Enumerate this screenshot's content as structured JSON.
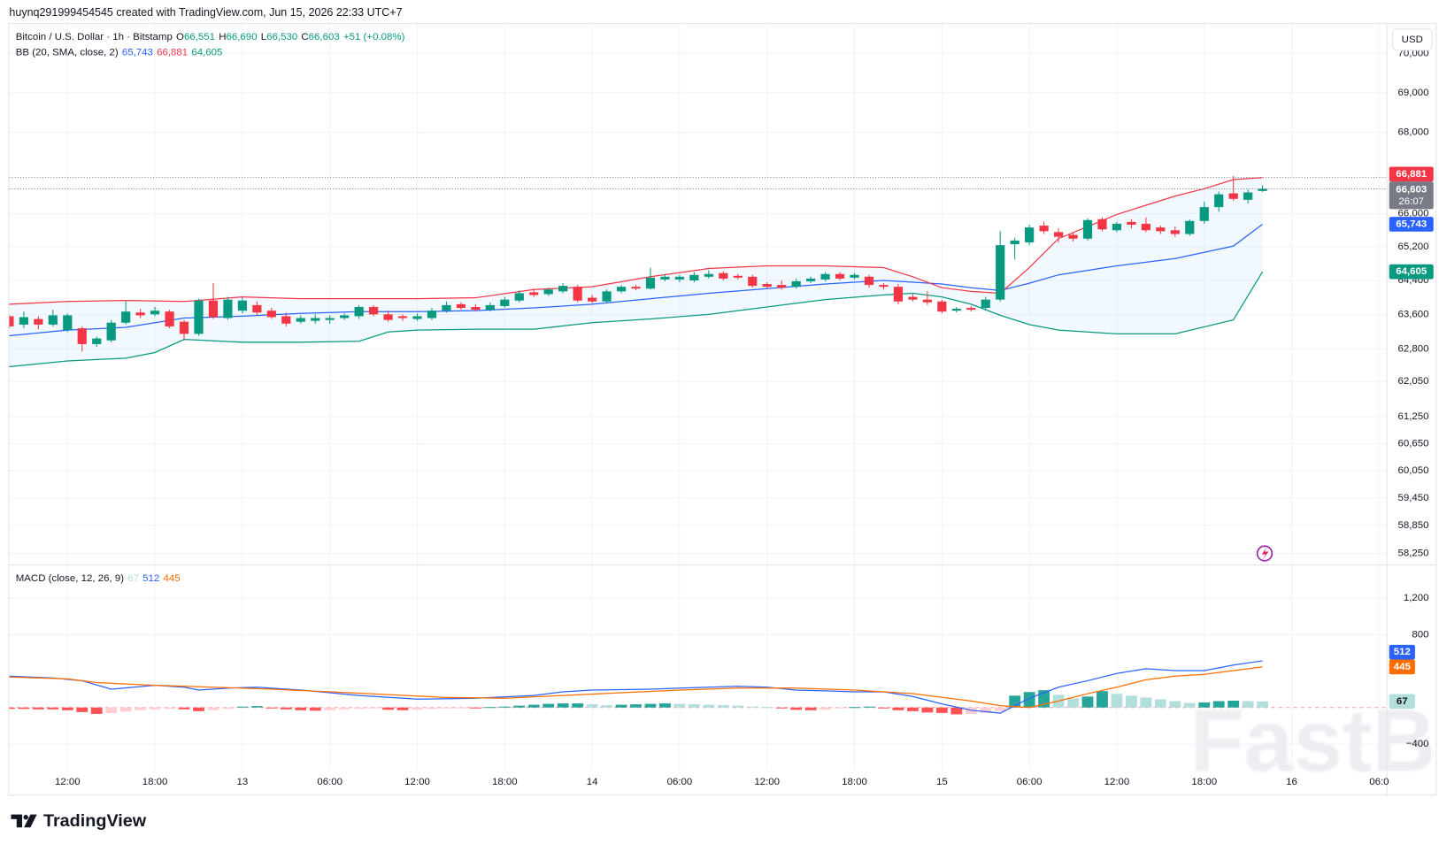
{
  "header": {
    "credit": "huynq291999454545 created with TradingView.com, Jun 15, 2026 22:33 UTC+7"
  },
  "footer": {
    "brand": "TradingView"
  },
  "watermark": "FastBull",
  "chart_data": [
    {
      "type": "candlestick",
      "title": "Bitcoin / U.S. Dollar · 1h · Bitstamp",
      "currency": "USD",
      "countdown": "26:07",
      "legend_ohlc": [
        {
          "key": "O",
          "value": "66,551"
        },
        {
          "key": "H",
          "value": "66,690"
        },
        {
          "key": "L",
          "value": "66,530"
        },
        {
          "key": "C",
          "value": "66,603"
        }
      ],
      "change": "+51 (+0.08%)",
      "colors": {
        "up": "#089981",
        "down": "#f23645"
      },
      "ohlc": [
        [
          63557,
          63600,
          63276,
          63319
        ],
        [
          63362,
          63665,
          63276,
          63535
        ],
        [
          63492,
          63557,
          63254,
          63362
        ],
        [
          63362,
          63708,
          63319,
          63578
        ],
        [
          63233,
          63622,
          63190,
          63578
        ],
        [
          63276,
          63319,
          62736,
          62909
        ],
        [
          62909,
          63082,
          62844,
          63038
        ],
        [
          62995,
          63470,
          62952,
          63406
        ],
        [
          63406,
          63902,
          63362,
          63665
        ],
        [
          63643,
          63730,
          63514,
          63578
        ],
        [
          63600,
          63773,
          63557,
          63686
        ],
        [
          63665,
          63708,
          63276,
          63319
        ],
        [
          63427,
          63470,
          62995,
          63146
        ],
        [
          63146,
          63967,
          63103,
          63924
        ],
        [
          63924,
          64334,
          63492,
          63535
        ],
        [
          63514,
          64010,
          63470,
          63946
        ],
        [
          63686,
          63989,
          63622,
          63924
        ],
        [
          63816,
          63902,
          63578,
          63643
        ],
        [
          63686,
          63751,
          63492,
          63535
        ],
        [
          63557,
          63643,
          63319,
          63384
        ],
        [
          63427,
          63578,
          63384,
          63514
        ],
        [
          63449,
          63600,
          63384,
          63514
        ],
        [
          63470,
          63578,
          63384,
          63514
        ],
        [
          63514,
          63622,
          63470,
          63578
        ],
        [
          63557,
          63816,
          63492,
          63773
        ],
        [
          63773,
          63816,
          63557,
          63600
        ],
        [
          63600,
          63686,
          63427,
          63470
        ],
        [
          63557,
          63600,
          63449,
          63514
        ],
        [
          63492,
          63622,
          63449,
          63557
        ],
        [
          63514,
          63751,
          63470,
          63686
        ],
        [
          63686,
          63902,
          63643,
          63816
        ],
        [
          63838,
          63881,
          63708,
          63751
        ],
        [
          63773,
          63838,
          63665,
          63708
        ],
        [
          63708,
          63881,
          63665,
          63816
        ],
        [
          63794,
          64010,
          63751,
          63946
        ],
        [
          63924,
          64162,
          63881,
          64097
        ],
        [
          64118,
          64205,
          64010,
          64054
        ],
        [
          64075,
          64226,
          64032,
          64183
        ],
        [
          64140,
          64334,
          64097,
          64270
        ],
        [
          64248,
          64291,
          63881,
          63924
        ],
        [
          63989,
          64054,
          63859,
          63902
        ],
        [
          63902,
          64183,
          63859,
          64140
        ],
        [
          64140,
          64291,
          64097,
          64248
        ],
        [
          64248,
          64291,
          64162,
          64205
        ],
        [
          64205,
          64702,
          64183,
          64464
        ],
        [
          64421,
          64550,
          64378,
          64486
        ],
        [
          64421,
          64529,
          64356,
          64486
        ],
        [
          64399,
          64594,
          64356,
          64529
        ],
        [
          64486,
          64637,
          64442,
          64550
        ],
        [
          64572,
          64615,
          64399,
          64442
        ],
        [
          64507,
          64550,
          64421,
          64464
        ],
        [
          64486,
          64529,
          64226,
          64270
        ],
        [
          64313,
          64356,
          64205,
          64248
        ],
        [
          64291,
          64399,
          64183,
          64226
        ],
        [
          64248,
          64442,
          64205,
          64378
        ],
        [
          64378,
          64486,
          64334,
          64442
        ],
        [
          64421,
          64594,
          64378,
          64550
        ],
        [
          64550,
          64594,
          64399,
          64442
        ],
        [
          64464,
          64572,
          64421,
          64529
        ],
        [
          64486,
          64529,
          64226,
          64291
        ],
        [
          64291,
          64334,
          64183,
          64248
        ],
        [
          64248,
          64313,
          63838,
          63902
        ],
        [
          64010,
          64075,
          63902,
          63946
        ],
        [
          63946,
          64140,
          63816,
          63881
        ],
        [
          63902,
          63946,
          63622,
          63665
        ],
        [
          63686,
          63773,
          63643,
          63730
        ],
        [
          63751,
          63794,
          63665,
          63708
        ],
        [
          63751,
          64010,
          63708,
          63946
        ],
        [
          63946,
          65574,
          63902,
          65238
        ],
        [
          65261,
          65418,
          64896,
          65350
        ],
        [
          65306,
          65731,
          65238,
          65664
        ],
        [
          65709,
          65798,
          65507,
          65574
        ],
        [
          65552,
          65642,
          65306,
          65440
        ],
        [
          65485,
          65530,
          65328,
          65395
        ],
        [
          65395,
          65888,
          65350,
          65843
        ],
        [
          65866,
          65910,
          65574,
          65619
        ],
        [
          65597,
          65798,
          65552,
          65754
        ],
        [
          65798,
          65866,
          65642,
          65731
        ],
        [
          65754,
          65910,
          65552,
          65597
        ],
        [
          65664,
          65709,
          65507,
          65574
        ],
        [
          65597,
          65686,
          65440,
          65507
        ],
        [
          65507,
          65866,
          65462,
          65821
        ],
        [
          65821,
          66291,
          65754,
          66157
        ],
        [
          66157,
          66538,
          66045,
          66470
        ],
        [
          66493,
          66918,
          66314,
          66358
        ],
        [
          66336,
          66582,
          66246,
          66515
        ],
        [
          66551,
          66690,
          66530,
          66603
        ]
      ],
      "overlay": {
        "name": "BB (20, SMA, close, 2)",
        "fill": "#2196f3",
        "series": [
          {
            "color": "#2962ff",
            "last_label": "65,743",
            "x": [
              0,
              4,
              8,
              12,
              16,
              20,
              24,
              28,
              32,
              36,
              40,
              44,
              48,
              52,
              56,
              60,
              64,
              66,
              68,
              70,
              72,
              76,
              80,
              84,
              86
            ],
            "values": [
              63103,
              63233,
              63298,
              63514,
              63557,
              63622,
              63665,
              63665,
              63686,
              63751,
              63838,
              63967,
              64097,
              64205,
              64313,
              64399,
              64313,
              64226,
              64162,
              64334,
              64529,
              64745,
              64918,
              65216,
              65743
            ]
          },
          {
            "color": "#f23645",
            "last_label": "66,881",
            "x": [
              0,
              4,
              8,
              12,
              16,
              20,
              24,
              28,
              32,
              36,
              40,
              44,
              48,
              52,
              56,
              60,
              62,
              64,
              66,
              68,
              70,
              72,
              74,
              76,
              78,
              80,
              82,
              84,
              86
            ],
            "values": [
              63838,
              63902,
              63924,
              63902,
              64010,
              63967,
              63967,
              63967,
              63989,
              64183,
              64248,
              64486,
              64680,
              64745,
              64745,
              64702,
              64486,
              64226,
              64140,
              64097,
              64702,
              65395,
              65686,
              65978,
              66202,
              66426,
              66605,
              66829,
              66881
            ]
          },
          {
            "color": "#089981",
            "last_label": "64,605",
            "x": [
              0,
              4,
              8,
              10,
              12,
              16,
              20,
              24,
              26,
              28,
              32,
              36,
              40,
              44,
              48,
              52,
              56,
              60,
              62,
              64,
              66,
              68,
              70,
              72,
              76,
              80,
              84,
              86
            ],
            "values": [
              62390,
              62520,
              62585,
              62714,
              63017,
              62952,
              62952,
              62974,
              63190,
              63233,
              63254,
              63254,
              63406,
              63492,
              63600,
              63773,
              63946,
              64054,
              64097,
              64010,
              63838,
              63578,
              63362,
              63233,
              63146,
              63146,
              63470,
              64605
            ]
          }
        ]
      },
      "xlim": [
        0,
        94.5
      ],
      "xticks": [
        {
          "value": 4,
          "label": "12:00"
        },
        {
          "value": 10,
          "label": "18:00"
        },
        {
          "value": 16,
          "label": "13"
        },
        {
          "value": 22,
          "label": "06:00"
        },
        {
          "value": 28,
          "label": "12:00"
        },
        {
          "value": 34,
          "label": "18:00"
        },
        {
          "value": 40,
          "label": "14"
        },
        {
          "value": 46,
          "label": "06:00"
        },
        {
          "value": 52,
          "label": "12:00"
        },
        {
          "value": 58,
          "label": "18:00"
        },
        {
          "value": 64,
          "label": "15"
        },
        {
          "value": 70,
          "label": "06:00"
        },
        {
          "value": 76,
          "label": "12:00"
        },
        {
          "value": 82,
          "label": "18:00"
        },
        {
          "value": 88,
          "label": "16"
        },
        {
          "value": 94,
          "label": "06:0"
        }
      ],
      "ylim": [
        58013,
        70788
      ],
      "ylog": true,
      "yticks": [
        {
          "value": 70000,
          "label": "70,000"
        },
        {
          "value": 69000,
          "label": "69,000"
        },
        {
          "value": 68000,
          "label": "68,000"
        },
        {
          "value": 66000,
          "label": "66,000"
        },
        {
          "value": 65200,
          "label": "65,200"
        },
        {
          "value": 64400,
          "label": "64,400"
        },
        {
          "value": 63600,
          "label": "63,600"
        },
        {
          "value": 62800,
          "label": "62,800"
        },
        {
          "value": 62050,
          "label": "62,050"
        },
        {
          "value": 61250,
          "label": "61,250"
        },
        {
          "value": 60650,
          "label": "60,650"
        },
        {
          "value": 60050,
          "label": "60,050"
        },
        {
          "value": 59450,
          "label": "59,450"
        },
        {
          "value": 58850,
          "label": "58,850"
        },
        {
          "value": 58250,
          "label": "58,250"
        }
      ],
      "grid": true
    },
    {
      "type": "macd",
      "title": "MACD (close, 12, 26, 9)",
      "histogram": {
        "colors": {
          "up_grow": "#26a69a",
          "up_fall": "#b2dfdb",
          "down_grow": "#ff5252",
          "down_fall": "#ffcdd2"
        },
        "values": [
          -15,
          -15,
          -20,
          -20,
          -30,
          -50,
          -70,
          -60,
          -45,
          -30,
          -20,
          -15,
          -20,
          -40,
          -30,
          -15,
          10,
          15,
          -10,
          -20,
          -30,
          -35,
          -30,
          -20,
          -15,
          -5,
          -25,
          -30,
          -25,
          -15,
          -10,
          -5,
          -5,
          5,
          10,
          20,
          30,
          40,
          45,
          45,
          35,
          25,
          30,
          35,
          40,
          45,
          40,
          35,
          30,
          25,
          20,
          10,
          5,
          -10,
          -25,
          -30,
          -25,
          -10,
          5,
          10,
          -5,
          -30,
          -40,
          -55,
          -60,
          -75,
          -70,
          -60,
          -40,
          130,
          170,
          190,
          140,
          100,
          120,
          180,
          150,
          130,
          110,
          90,
          70,
          50,
          55,
          70,
          75,
          70,
          67
        ]
      },
      "series": [
        {
          "color": "#2962ff",
          "x": [
            0,
            3,
            5,
            7,
            10,
            12,
            13,
            15,
            17,
            20,
            24,
            28,
            32,
            36,
            38,
            40,
            44,
            48,
            50,
            52,
            54,
            56,
            58,
            60,
            62,
            64,
            66,
            68,
            70,
            72,
            74,
            76,
            78,
            80,
            82,
            84,
            86
          ],
          "values": [
            344,
            324,
            294,
            202,
            243,
            223,
            192,
            213,
            223,
            192,
            132,
            91,
            101,
            132,
            172,
            192,
            202,
            223,
            233,
            223,
            192,
            182,
            172,
            172,
            121,
            40,
            -30,
            -61,
            101,
            223,
            294,
            374,
            425,
            405,
            405,
            466,
            512
          ]
        },
        {
          "color": "#ff6d00",
          "x": [
            0,
            4,
            6,
            10,
            14,
            18,
            22,
            26,
            30,
            34,
            38,
            42,
            46,
            50,
            54,
            58,
            62,
            66,
            68,
            70,
            72,
            74,
            76,
            78,
            80,
            82,
            84,
            86
          ],
          "values": [
            334,
            314,
            273,
            243,
            223,
            202,
            172,
            142,
            111,
            101,
            132,
            162,
            192,
            213,
            213,
            192,
            152,
            71,
            20,
            0,
            71,
            152,
            223,
            304,
            344,
            364,
            405,
            445
          ]
        }
      ],
      "ylim": [
        -688,
        1569
      ],
      "yticks": [
        {
          "value": 1200,
          "label": "1,200"
        },
        800,
        {
          "value": -400,
          "label": "−400"
        }
      ],
      "grid": true
    }
  ]
}
